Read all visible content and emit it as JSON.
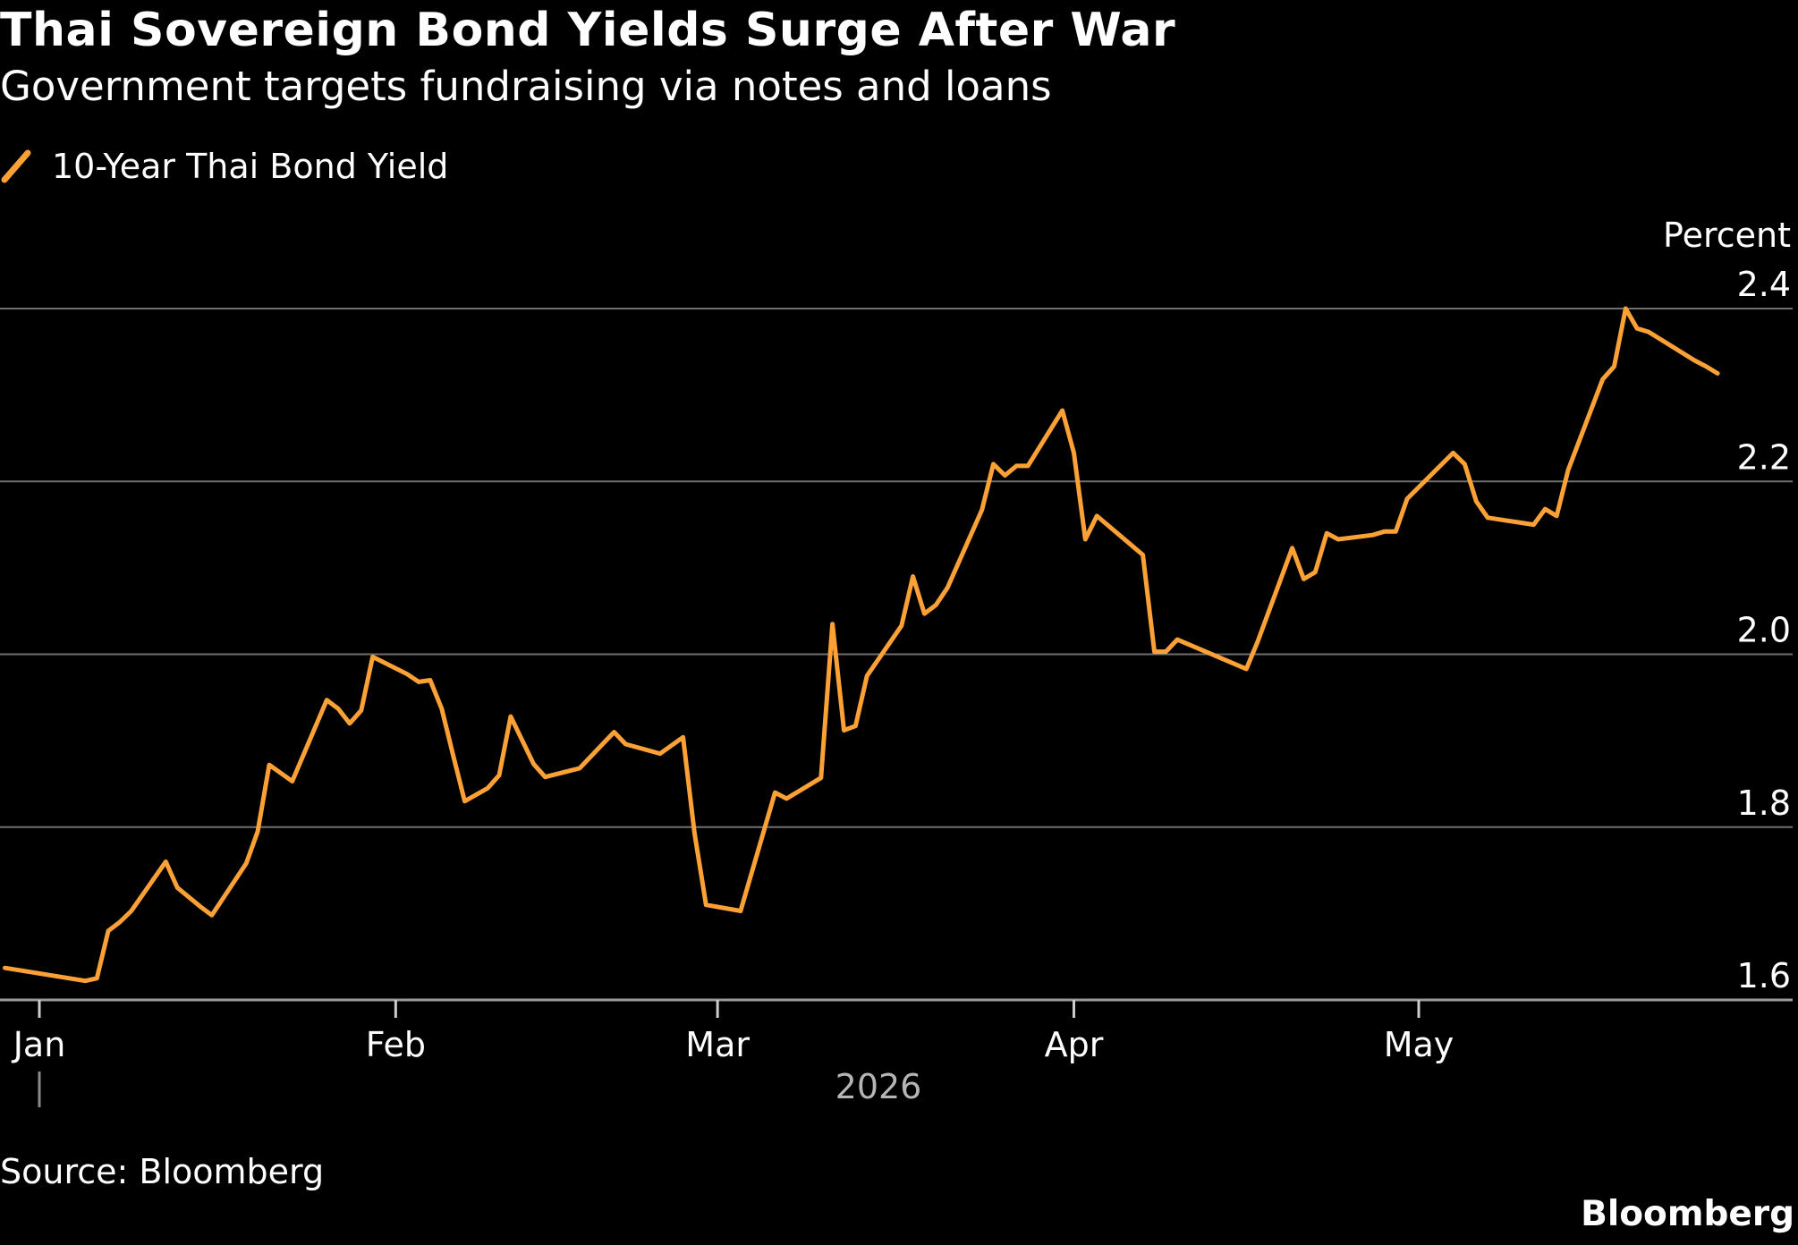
{
  "header": {
    "title": "Thai Sovereign Bond Yields Surge After War",
    "subtitle": "Government targets fundraising via notes and loans"
  },
  "legend": {
    "label": "10-Year Thai Bond Yield"
  },
  "footer": {
    "source": "Source: Bloomberg",
    "brand": "Bloomberg"
  },
  "colors": {
    "background": "#000000",
    "line": "#FBA135",
    "grid": "#6f6f6f",
    "text": "#ffffff",
    "year_label": "#b5b5b5"
  },
  "chart_data": {
    "type": "line",
    "title": "Thai Sovereign Bond Yields Surge After War",
    "subtitle": "Government targets fundraising via notes and loans",
    "ylabel": "Percent",
    "xlabel": "",
    "year_label": "2026",
    "ylim": [
      1.6,
      2.4
    ],
    "yticks": [
      1.6,
      1.8,
      2.0,
      2.2,
      2.4
    ],
    "ytick_labels": [
      "1.6",
      "1.8",
      "2.0",
      "2.2",
      "2.4"
    ],
    "xlim": [
      "2025-12-29",
      "2026-06-01"
    ],
    "xticks": [
      {
        "date": "2026-01-01",
        "label": "Jan"
      },
      {
        "date": "2026-02-01",
        "label": "Feb"
      },
      {
        "date": "2026-03-01",
        "label": "Mar"
      },
      {
        "date": "2026-04-01",
        "label": "Apr"
      },
      {
        "date": "2026-05-01",
        "label": "May"
      }
    ],
    "grid": true,
    "legend_position": "top-left",
    "series": [
      {
        "name": "10-Year Thai Bond Yield",
        "color": "#FBA135",
        "points": [
          [
            "2025-12-29",
            1.637
          ],
          [
            "2026-01-05",
            1.622
          ],
          [
            "2026-01-06",
            1.625
          ],
          [
            "2026-01-07",
            1.68
          ],
          [
            "2026-01-08",
            1.69
          ],
          [
            "2026-01-09",
            1.703
          ],
          [
            "2026-01-12",
            1.76
          ],
          [
            "2026-01-13",
            1.73
          ],
          [
            "2026-01-15",
            1.708
          ],
          [
            "2026-01-16",
            1.698
          ],
          [
            "2026-01-19",
            1.758
          ],
          [
            "2026-01-20",
            1.795
          ],
          [
            "2026-01-21",
            1.872
          ],
          [
            "2026-01-23",
            1.853
          ],
          [
            "2026-01-26",
            1.947
          ],
          [
            "2026-01-27",
            1.937
          ],
          [
            "2026-01-28",
            1.92
          ],
          [
            "2026-01-29",
            1.935
          ],
          [
            "2026-01-30",
            1.997
          ],
          [
            "2026-02-02",
            1.977
          ],
          [
            "2026-02-03",
            1.968
          ],
          [
            "2026-02-04",
            1.97
          ],
          [
            "2026-02-05",
            1.937
          ],
          [
            "2026-02-06",
            1.883
          ],
          [
            "2026-02-07",
            1.83
          ],
          [
            "2026-02-09",
            1.845
          ],
          [
            "2026-02-10",
            1.86
          ],
          [
            "2026-02-11",
            1.928
          ],
          [
            "2026-02-13",
            1.873
          ],
          [
            "2026-02-14",
            1.858
          ],
          [
            "2026-02-17",
            1.868
          ],
          [
            "2026-02-20",
            1.91
          ],
          [
            "2026-02-21",
            1.896
          ],
          [
            "2026-02-24",
            1.885
          ],
          [
            "2026-02-26",
            1.904
          ],
          [
            "2026-02-27",
            1.793
          ],
          [
            "2026-02-28",
            1.71
          ],
          [
            "2026-03-03",
            1.703
          ],
          [
            "2026-03-06",
            1.84
          ],
          [
            "2026-03-07",
            1.833
          ],
          [
            "2026-03-10",
            1.857
          ],
          [
            "2026-03-11",
            2.035
          ],
          [
            "2026-03-12",
            1.912
          ],
          [
            "2026-03-13",
            1.917
          ],
          [
            "2026-03-14",
            1.975
          ],
          [
            "2026-03-17",
            2.033
          ],
          [
            "2026-03-18",
            2.09
          ],
          [
            "2026-03-19",
            2.047
          ],
          [
            "2026-03-20",
            2.057
          ],
          [
            "2026-03-21",
            2.077
          ],
          [
            "2026-03-24",
            2.167
          ],
          [
            "2026-03-25",
            2.22
          ],
          [
            "2026-03-26",
            2.207
          ],
          [
            "2026-03-27",
            2.218
          ],
          [
            "2026-03-28",
            2.218
          ],
          [
            "2026-03-31",
            2.282
          ],
          [
            "2026-04-01",
            2.233
          ],
          [
            "2026-04-02",
            2.133
          ],
          [
            "2026-04-03",
            2.16
          ],
          [
            "2026-04-07",
            2.115
          ],
          [
            "2026-04-08",
            2.003
          ],
          [
            "2026-04-09",
            2.003
          ],
          [
            "2026-04-10",
            2.017
          ],
          [
            "2026-04-16",
            1.983
          ],
          [
            "2026-04-17",
            2.015
          ],
          [
            "2026-04-20",
            2.123
          ],
          [
            "2026-04-21",
            2.087
          ],
          [
            "2026-04-22",
            2.095
          ],
          [
            "2026-04-23",
            2.14
          ],
          [
            "2026-04-24",
            2.133
          ],
          [
            "2026-04-27",
            2.138
          ],
          [
            "2026-04-28",
            2.142
          ],
          [
            "2026-04-29",
            2.142
          ],
          [
            "2026-04-30",
            2.18
          ],
          [
            "2026-05-04",
            2.233
          ],
          [
            "2026-05-05",
            2.22
          ],
          [
            "2026-05-06",
            2.177
          ],
          [
            "2026-05-07",
            2.158
          ],
          [
            "2026-05-11",
            2.15
          ],
          [
            "2026-05-12",
            2.168
          ],
          [
            "2026-05-13",
            2.16
          ],
          [
            "2026-05-14",
            2.213
          ],
          [
            "2026-05-17",
            2.318
          ],
          [
            "2026-05-18",
            2.333
          ],
          [
            "2026-05-19",
            2.4
          ],
          [
            "2026-05-20",
            2.377
          ],
          [
            "2026-05-21",
            2.373
          ],
          [
            "2026-05-25",
            2.34
          ],
          [
            "2026-05-26",
            2.333
          ],
          [
            "2026-05-27",
            2.325
          ]
        ]
      }
    ]
  }
}
